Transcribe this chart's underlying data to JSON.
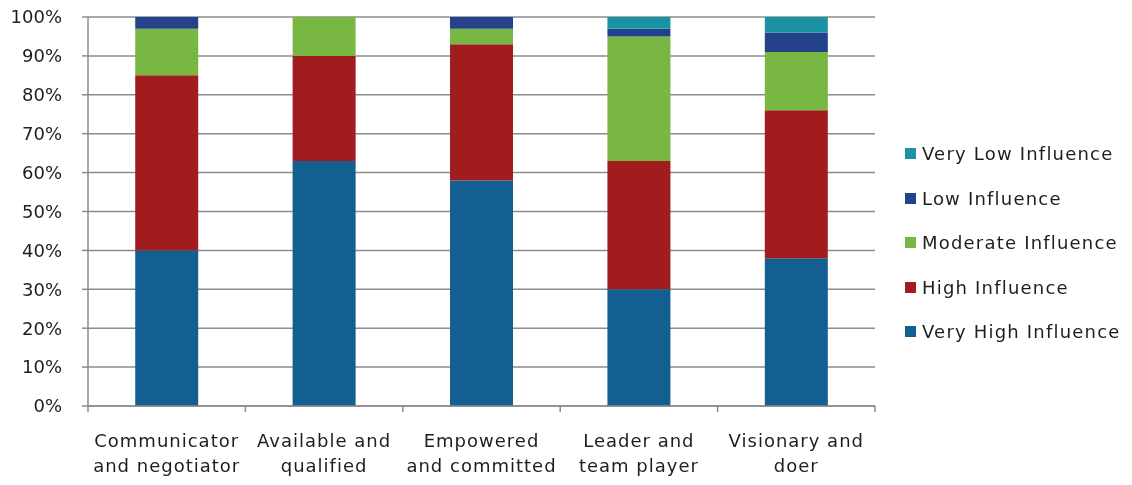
{
  "chart_data": {
    "type": "bar",
    "stacked": true,
    "categories": [
      "Communicator and negotiator",
      "Available and qualified",
      "Empowered and committed",
      "Leader and team player",
      "Visionary and doer"
    ],
    "series": [
      {
        "name": "Very High Influence",
        "color": "#135f91",
        "values": [
          40,
          63,
          58,
          30,
          38
        ]
      },
      {
        "name": "High Influence",
        "color": "#a01c1f",
        "values": [
          45,
          27,
          35,
          33,
          38
        ]
      },
      {
        "name": "Moderate Influence",
        "color": "#79b743",
        "values": [
          12,
          10,
          4,
          32,
          15
        ]
      },
      {
        "name": "Low Influence",
        "color": "#24428a",
        "values": [
          3,
          0,
          3,
          2,
          5
        ]
      },
      {
        "name": "Very Low Influence",
        "color": "#1b93a5",
        "values": [
          0,
          0,
          0,
          3,
          4
        ]
      }
    ],
    "ylim": [
      0,
      100
    ],
    "yticks": [
      {
        "value": 0,
        "label": "0%"
      },
      {
        "value": 10,
        "label": "10%"
      },
      {
        "value": 20,
        "label": "20%"
      },
      {
        "value": 30,
        "label": "30%"
      },
      {
        "value": 40,
        "label": "40%"
      },
      {
        "value": 50,
        "label": "50%"
      },
      {
        "value": 60,
        "label": "60%"
      },
      {
        "value": 70,
        "label": "70%"
      },
      {
        "value": 80,
        "label": "80%"
      },
      {
        "value": 90,
        "label": "90%"
      },
      {
        "value": 100,
        "label": "100%"
      }
    ],
    "grid": "y",
    "legend": "right"
  }
}
